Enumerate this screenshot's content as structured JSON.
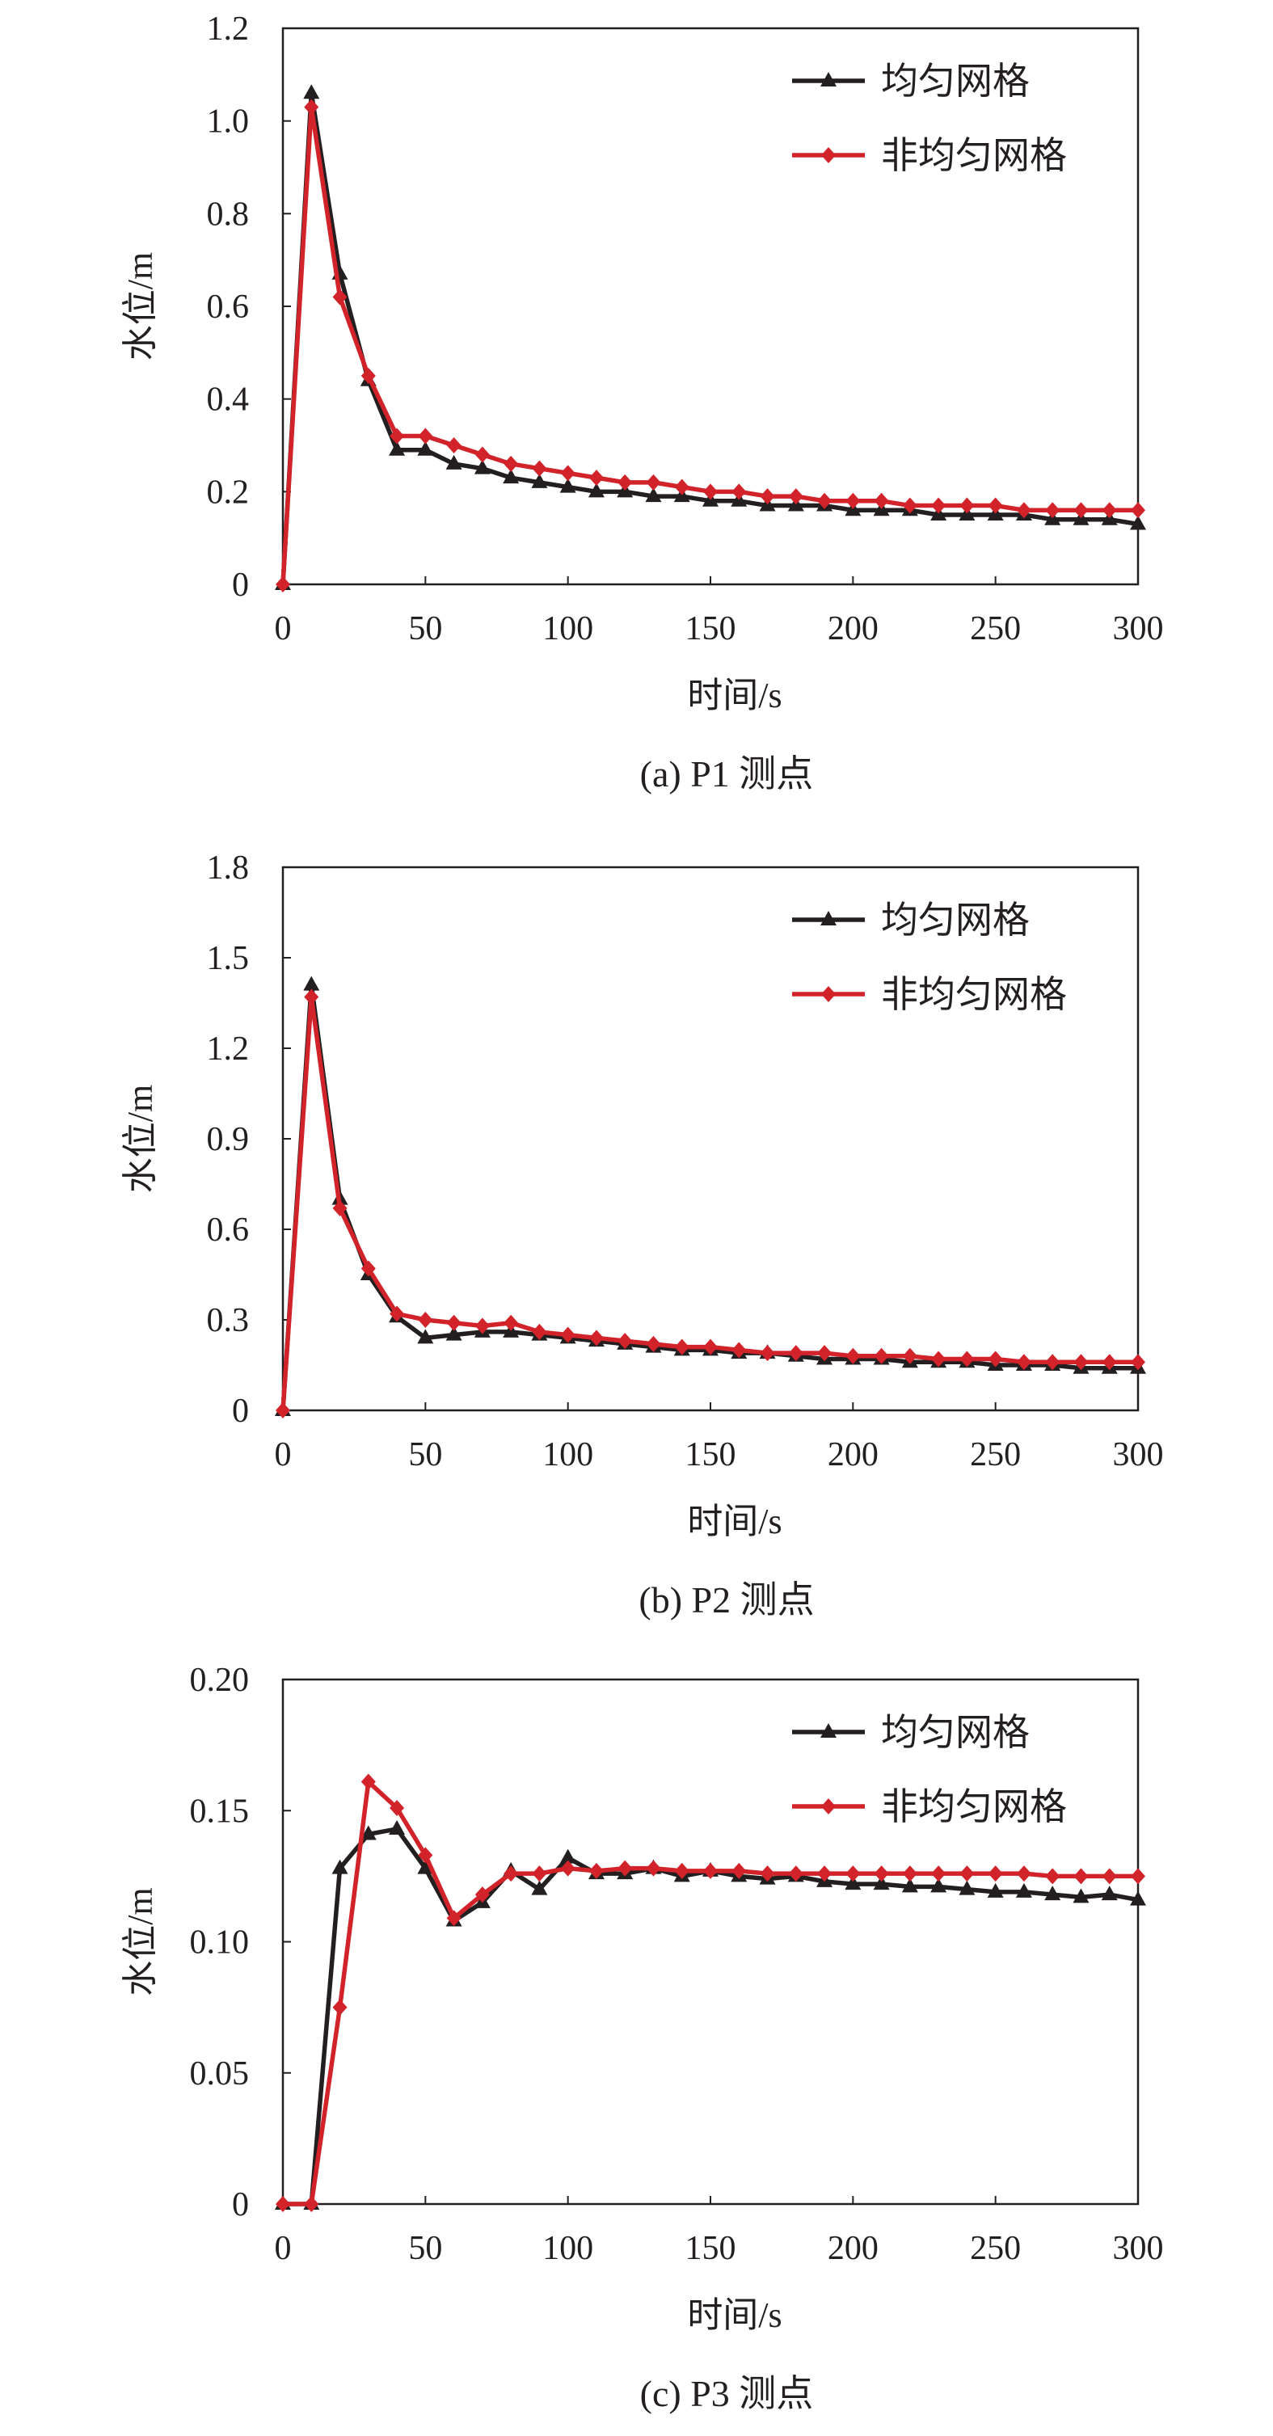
{
  "colors": {
    "uniform": "#231f20",
    "nonuniform": "#d2232a",
    "axis": "#231f20"
  },
  "chart_data": [
    {
      "type": "line",
      "caption": "(a) P1 测点",
      "xlabel": "时间/s",
      "ylabel": "水位/m",
      "xlim": [
        0,
        300
      ],
      "ylim": [
        0,
        1.2
      ],
      "xticks": [
        0,
        50,
        100,
        150,
        200,
        250,
        300
      ],
      "xtick_labels": [
        "0",
        "50",
        "100",
        "150",
        "200",
        "250",
        "300"
      ],
      "yticks": [
        0,
        0.2,
        0.4,
        0.6,
        0.8,
        1.0,
        1.2
      ],
      "ytick_labels": [
        "0",
        "0.2",
        "0.4",
        "0.6",
        "0.8",
        "1.0",
        "1.2"
      ],
      "legend_position": "top-right",
      "series": [
        {
          "name": "均匀网格",
          "marker": "triangle",
          "color_key": "uniform",
          "x": [
            0,
            10,
            20,
            30,
            40,
            50,
            60,
            70,
            80,
            90,
            100,
            110,
            120,
            130,
            140,
            150,
            160,
            170,
            180,
            190,
            200,
            210,
            220,
            230,
            240,
            250,
            260,
            270,
            280,
            290,
            300
          ],
          "y": [
            0,
            1.06,
            0.67,
            0.44,
            0.29,
            0.29,
            0.26,
            0.25,
            0.23,
            0.22,
            0.21,
            0.2,
            0.2,
            0.19,
            0.19,
            0.18,
            0.18,
            0.17,
            0.17,
            0.17,
            0.16,
            0.16,
            0.16,
            0.15,
            0.15,
            0.15,
            0.15,
            0.14,
            0.14,
            0.14,
            0.13
          ]
        },
        {
          "name": "非均匀网格",
          "marker": "diamond",
          "color_key": "nonuniform",
          "x": [
            0,
            10,
            20,
            30,
            40,
            50,
            60,
            70,
            80,
            90,
            100,
            110,
            120,
            130,
            140,
            150,
            160,
            170,
            180,
            190,
            200,
            210,
            220,
            230,
            240,
            250,
            260,
            270,
            280,
            290,
            300
          ],
          "y": [
            0,
            1.03,
            0.62,
            0.45,
            0.32,
            0.32,
            0.3,
            0.28,
            0.26,
            0.25,
            0.24,
            0.23,
            0.22,
            0.22,
            0.21,
            0.2,
            0.2,
            0.19,
            0.19,
            0.18,
            0.18,
            0.18,
            0.17,
            0.17,
            0.17,
            0.17,
            0.16,
            0.16,
            0.16,
            0.16,
            0.16
          ]
        }
      ]
    },
    {
      "type": "line",
      "caption": "(b) P2 测点",
      "xlabel": "时间/s",
      "ylabel": "水位/m",
      "xlim": [
        0,
        300
      ],
      "ylim": [
        0,
        1.8
      ],
      "xticks": [
        0,
        50,
        100,
        150,
        200,
        250,
        300
      ],
      "xtick_labels": [
        "0",
        "50",
        "100",
        "150",
        "200",
        "250",
        "300"
      ],
      "yticks": [
        0,
        0.3,
        0.6,
        0.9,
        1.2,
        1.5,
        1.8
      ],
      "ytick_labels": [
        "0",
        "0.3",
        "0.6",
        "0.9",
        "1.2",
        "1.5",
        "1.8"
      ],
      "legend_position": "top-right",
      "series": [
        {
          "name": "均匀网格",
          "marker": "triangle",
          "color_key": "uniform",
          "x": [
            0,
            10,
            20,
            30,
            40,
            50,
            60,
            70,
            80,
            90,
            100,
            110,
            120,
            130,
            140,
            150,
            160,
            170,
            180,
            190,
            200,
            210,
            220,
            230,
            240,
            250,
            260,
            270,
            280,
            290,
            300
          ],
          "y": [
            0,
            1.41,
            0.7,
            0.45,
            0.31,
            0.24,
            0.25,
            0.26,
            0.26,
            0.25,
            0.24,
            0.23,
            0.22,
            0.21,
            0.2,
            0.2,
            0.19,
            0.19,
            0.18,
            0.17,
            0.17,
            0.17,
            0.16,
            0.16,
            0.16,
            0.15,
            0.15,
            0.15,
            0.14,
            0.14,
            0.14
          ]
        },
        {
          "name": "非均匀网格",
          "marker": "diamond",
          "color_key": "nonuniform",
          "x": [
            0,
            10,
            20,
            30,
            40,
            50,
            60,
            70,
            80,
            90,
            100,
            110,
            120,
            130,
            140,
            150,
            160,
            170,
            180,
            190,
            200,
            210,
            220,
            230,
            240,
            250,
            260,
            270,
            280,
            290,
            300
          ],
          "y": [
            0,
            1.37,
            0.67,
            0.47,
            0.32,
            0.3,
            0.29,
            0.28,
            0.29,
            0.26,
            0.25,
            0.24,
            0.23,
            0.22,
            0.21,
            0.21,
            0.2,
            0.19,
            0.19,
            0.19,
            0.18,
            0.18,
            0.18,
            0.17,
            0.17,
            0.17,
            0.16,
            0.16,
            0.16,
            0.16,
            0.16
          ]
        }
      ]
    },
    {
      "type": "line",
      "caption": "(c) P3 测点",
      "xlabel": "时间/s",
      "ylabel": "水位/m",
      "xlim": [
        0,
        300
      ],
      "ylim": [
        0,
        0.2
      ],
      "xticks": [
        0,
        50,
        100,
        150,
        200,
        250,
        300
      ],
      "xtick_labels": [
        "0",
        "50",
        "100",
        "150",
        "200",
        "250",
        "300"
      ],
      "yticks": [
        0,
        0.05,
        0.1,
        0.15,
        0.2
      ],
      "ytick_labels": [
        "0",
        "0.05",
        "0.10",
        "0.15",
        "0.20"
      ],
      "legend_position": "top-right",
      "series": [
        {
          "name": "均匀网格",
          "marker": "triangle",
          "color_key": "uniform",
          "x": [
            0,
            10,
            20,
            30,
            40,
            50,
            60,
            70,
            80,
            90,
            100,
            110,
            120,
            130,
            140,
            150,
            160,
            170,
            180,
            190,
            200,
            210,
            220,
            230,
            240,
            250,
            260,
            270,
            280,
            290,
            300
          ],
          "y": [
            0,
            0,
            0.128,
            0.141,
            0.143,
            0.128,
            0.108,
            0.115,
            0.127,
            0.12,
            0.132,
            0.126,
            0.126,
            0.128,
            0.125,
            0.127,
            0.125,
            0.124,
            0.125,
            0.123,
            0.122,
            0.122,
            0.121,
            0.121,
            0.12,
            0.119,
            0.119,
            0.118,
            0.117,
            0.118,
            0.116
          ]
        },
        {
          "name": "非均匀网格",
          "marker": "diamond",
          "color_key": "nonuniform",
          "x": [
            0,
            10,
            20,
            30,
            40,
            50,
            60,
            70,
            80,
            90,
            100,
            110,
            120,
            130,
            140,
            150,
            160,
            170,
            180,
            190,
            200,
            210,
            220,
            230,
            240,
            250,
            260,
            270,
            280,
            290,
            300
          ],
          "y": [
            0,
            0,
            0.075,
            0.161,
            0.151,
            0.133,
            0.109,
            0.118,
            0.126,
            0.126,
            0.128,
            0.127,
            0.128,
            0.128,
            0.127,
            0.127,
            0.127,
            0.126,
            0.126,
            0.126,
            0.126,
            0.126,
            0.126,
            0.126,
            0.126,
            0.126,
            0.126,
            0.125,
            0.125,
            0.125,
            0.125
          ]
        }
      ]
    }
  ]
}
